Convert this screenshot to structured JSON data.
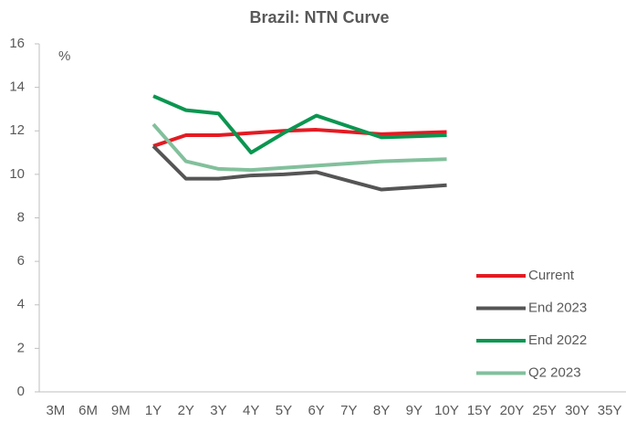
{
  "chart_data": {
    "type": "line",
    "title": "Brazil: NTN Curve",
    "y_unit_label": "%",
    "categories": [
      "3M",
      "6M",
      "9M",
      "1Y",
      "2Y",
      "3Y",
      "4Y",
      "5Y",
      "6Y",
      "7Y",
      "8Y",
      "9Y",
      "10Y",
      "15Y",
      "20Y",
      "25Y",
      "30Y",
      "35Y"
    ],
    "series": [
      {
        "name": "Current",
        "color": "#e31b23",
        "values": [
          null,
          null,
          null,
          11.3,
          11.8,
          11.8,
          11.9,
          12.0,
          12.05,
          11.95,
          11.85,
          11.9,
          11.95,
          null,
          null,
          null,
          null,
          null
        ]
      },
      {
        "name": "End 2023",
        "color": "#555555",
        "values": [
          null,
          null,
          null,
          11.3,
          9.8,
          9.8,
          9.95,
          10.0,
          10.1,
          9.7,
          9.3,
          9.4,
          9.5,
          null,
          null,
          null,
          null,
          null
        ]
      },
      {
        "name": "End 2022",
        "color": "#0a9650",
        "values": [
          null,
          null,
          null,
          13.6,
          12.95,
          12.8,
          11.0,
          11.9,
          12.7,
          12.2,
          11.7,
          11.75,
          11.8,
          null,
          null,
          null,
          null,
          null
        ]
      },
      {
        "name": "Q2 2023",
        "color": "#82c09c",
        "values": [
          null,
          null,
          null,
          12.3,
          10.6,
          10.25,
          10.2,
          10.3,
          10.4,
          10.5,
          10.6,
          10.65,
          10.7,
          null,
          null,
          null,
          null,
          null
        ]
      }
    ],
    "ylim": [
      0,
      16
    ],
    "yticks": [
      0,
      2,
      4,
      6,
      8,
      10,
      12,
      14,
      16
    ],
    "legend": "lower right"
  }
}
